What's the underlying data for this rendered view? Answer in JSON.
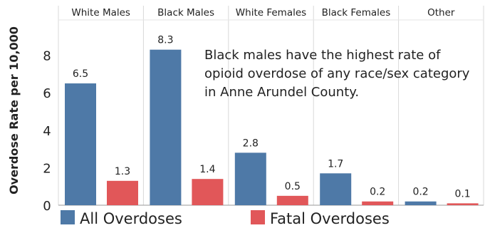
{
  "chart_data": {
    "type": "bar",
    "categories": [
      "White Males",
      "Black Males",
      "White Females",
      "Black Females",
      "Other"
    ],
    "series": [
      {
        "name": "All Overdoses",
        "color": "#4e79a7",
        "values": [
          6.5,
          8.3,
          2.8,
          1.7,
          0.2
        ],
        "labels": [
          "6.5",
          "8.3",
          "2.8",
          "1.7",
          "0.2"
        ]
      },
      {
        "name": "Fatal Overdoses",
        "color": "#e15759",
        "values": [
          1.3,
          1.4,
          0.5,
          0.2,
          0.1
        ],
        "labels": [
          "1.3",
          "1.4",
          "0.5",
          "0.2",
          "0.1"
        ]
      }
    ],
    "ylabel": "Overdose Rate per 10,000",
    "yticks": [
      "0",
      "2",
      "4",
      "6",
      "8"
    ],
    "ytick_values": [
      0,
      2,
      4,
      6,
      8
    ],
    "ylim": [
      0,
      9.5
    ],
    "annotation": [
      "Black males have the highest rate of",
      "opioid overdose of any race/sex category",
      "in Anne Arundel County."
    ],
    "legend_position": "bottom",
    "grid": false
  }
}
